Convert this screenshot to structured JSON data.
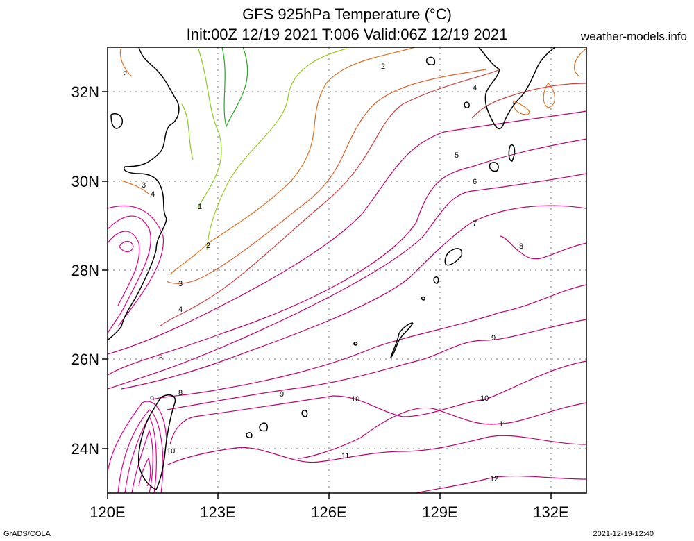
{
  "header": {
    "title_line1": "GFS 925hPa Temperature (°C)",
    "title_line2": "Init:00Z 12/19 2021 T:006 Valid:06Z 12/19 2021",
    "site": "weather-models.info"
  },
  "footer": {
    "left": "GrADS/COLA",
    "right": "2021-12-19-12:40"
  },
  "map": {
    "lon_range": [
      120,
      133
    ],
    "lat_range": [
      23,
      33
    ],
    "x_ticks": [
      "120E",
      "123E",
      "126E",
      "129E",
      "132E"
    ],
    "y_ticks": [
      "32N",
      "30N",
      "28N",
      "26N",
      "24N"
    ],
    "grid": "dotted",
    "contour_unit": "°C",
    "contour_labels": [
      "1",
      "2",
      "2",
      "2",
      "3",
      "3",
      "4",
      "4",
      "4",
      "5",
      "6",
      "6",
      "7",
      "8",
      "8",
      "9",
      "9",
      "9",
      "10",
      "10",
      "10",
      "11",
      "11",
      "12"
    ],
    "colors": {
      "cold": "#33cc33",
      "mid": "#e07020",
      "warm": "#c0006f",
      "hot": "#e0008a",
      "coast": "#000000"
    }
  }
}
